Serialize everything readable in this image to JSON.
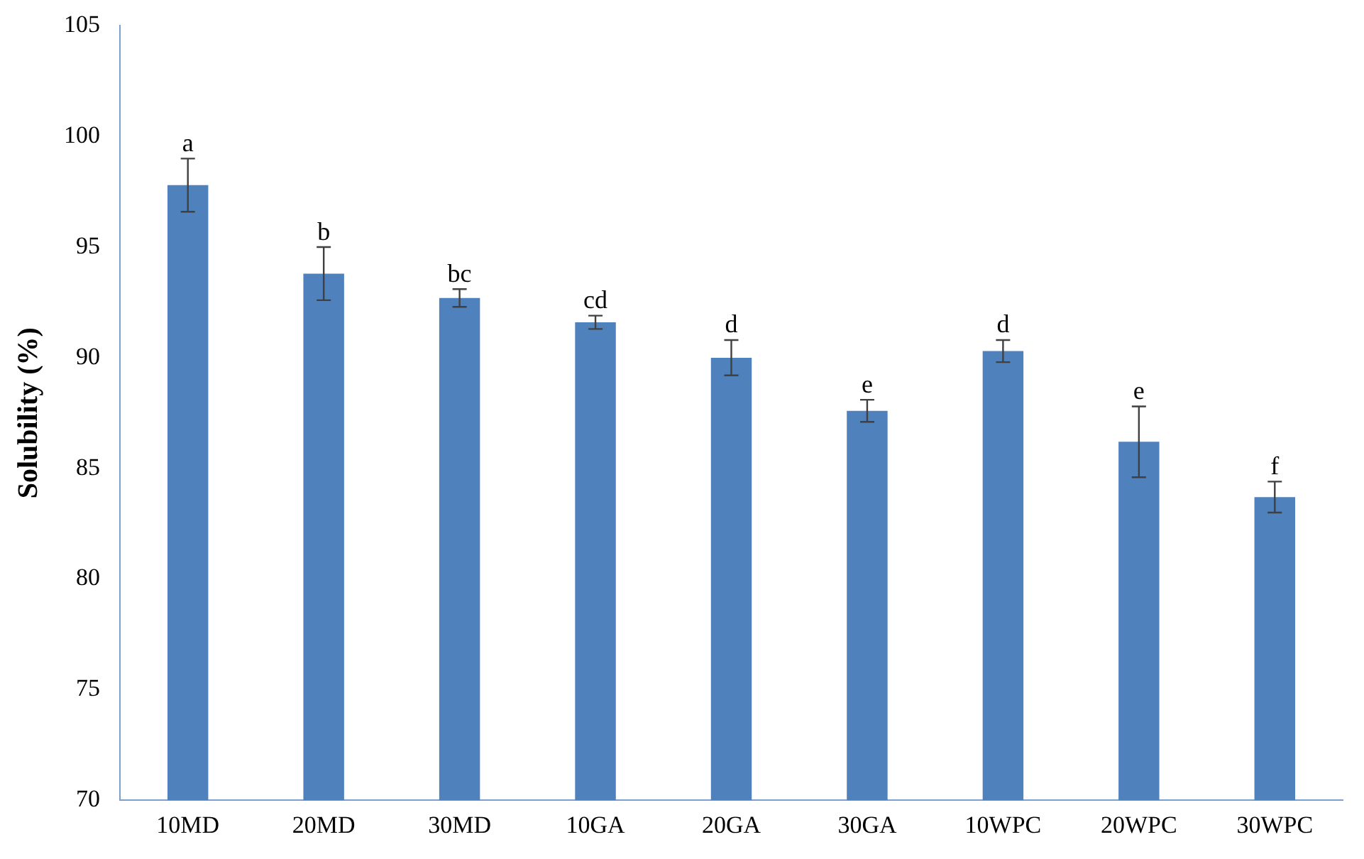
{
  "chart_data": {
    "type": "bar",
    "ylabel": "Solubility (%)",
    "categories": [
      "10MD",
      "20MD",
      "30MD",
      "10GA",
      "20GA",
      "30GA",
      "10WPC",
      "20WPC",
      "30WPC"
    ],
    "values": [
      97.8,
      93.8,
      92.7,
      91.6,
      90.0,
      87.6,
      90.3,
      86.2,
      83.7
    ],
    "errors": [
      1.2,
      1.2,
      0.4,
      0.3,
      0.8,
      0.5,
      0.5,
      1.6,
      0.7
    ],
    "color": "#4f81bd",
    "ylim": [
      70,
      105
    ],
    "yticks": [
      70,
      75,
      80,
      85,
      90,
      95,
      100,
      105
    ],
    "grid": false,
    "legend": false,
    "annotations": [
      {
        "text": "a",
        "x": "10MD",
        "y": 99.0
      },
      {
        "text": "b",
        "x": "20MD",
        "y": 95.0
      },
      {
        "text": "bc",
        "x": "30MD",
        "y": 93.1
      },
      {
        "text": "cd",
        "x": "10GA",
        "y": 91.9
      },
      {
        "text": "d",
        "x": "20GA",
        "y": 90.8
      },
      {
        "text": "e",
        "x": "30GA",
        "y": 88.1
      },
      {
        "text": "d",
        "x": "10WPC",
        "y": 90.8
      },
      {
        "text": "e",
        "x": "20WPC",
        "y": 87.8
      },
      {
        "text": "f",
        "x": "30WPC",
        "y": 84.4
      }
    ]
  }
}
